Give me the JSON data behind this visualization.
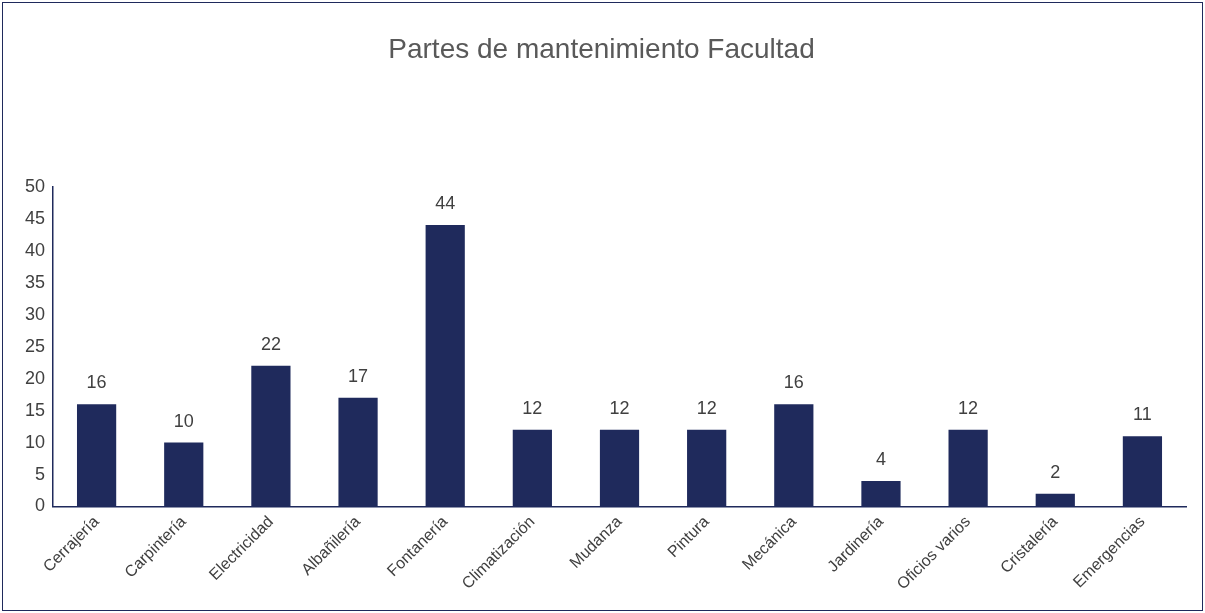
{
  "chart_data": {
    "type": "bar",
    "title": "Partes de mantenimiento Facultad",
    "categories": [
      "Cerrajería",
      "Carpintería",
      "Electricidad",
      "Albañilería",
      "Fontanería",
      "Climatización",
      "Mudanza",
      "Pintura",
      "Mecánica",
      "Jardinería",
      "Oficios varios",
      "Cristalería",
      "Emergencias"
    ],
    "values": [
      16,
      10,
      22,
      17,
      44,
      12,
      12,
      12,
      16,
      4,
      12,
      2,
      11
    ],
    "color": "#1f2a5c",
    "ylim": [
      0,
      50
    ],
    "yticks": [
      0,
      5,
      10,
      15,
      20,
      25,
      30,
      35,
      40,
      45,
      50
    ],
    "grid": false,
    "legend": false,
    "data_labels": true
  }
}
